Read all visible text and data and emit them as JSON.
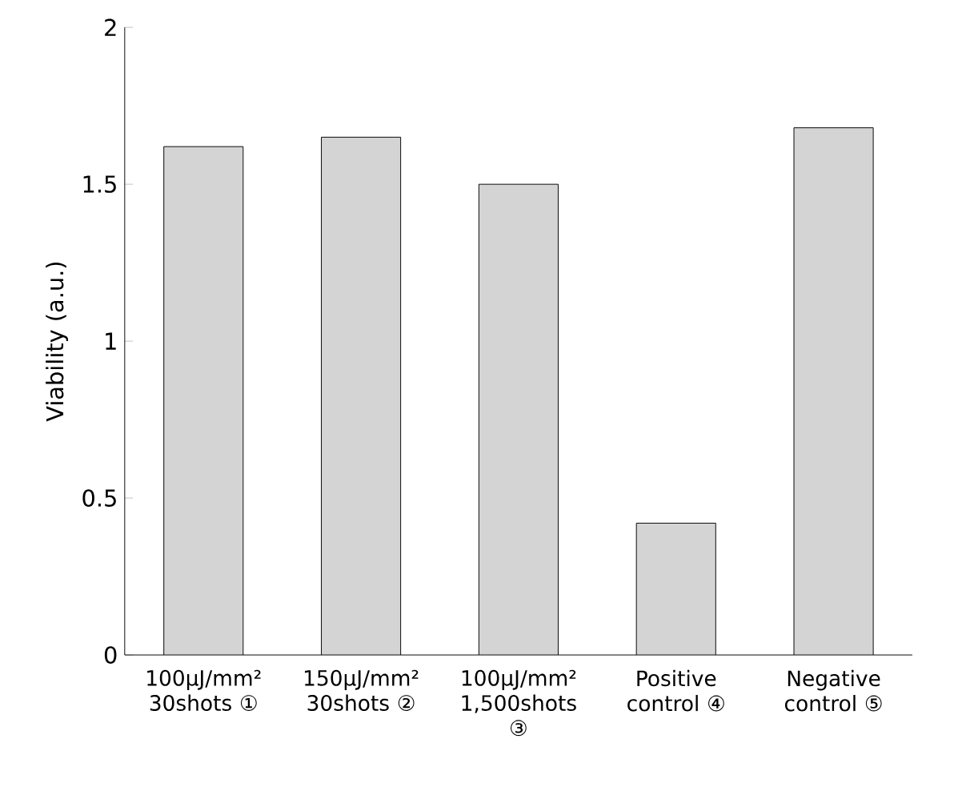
{
  "chart_data": {
    "type": "bar",
    "ylabel": "Viability (a.u.)",
    "categories": [
      "100μJ/mm² 30shots ①",
      "150μJ/mm² 30shots ②",
      "100μJ/mm² 1,500shots ③",
      "Positive control ④",
      "Negative control ⑤"
    ],
    "values": [
      1.62,
      1.65,
      1.5,
      0.42,
      1.68
    ],
    "color": "#d4d4d4",
    "ylim": [
      0,
      2
    ],
    "yticks": [
      0,
      0.5,
      1,
      1.5,
      2
    ]
  }
}
